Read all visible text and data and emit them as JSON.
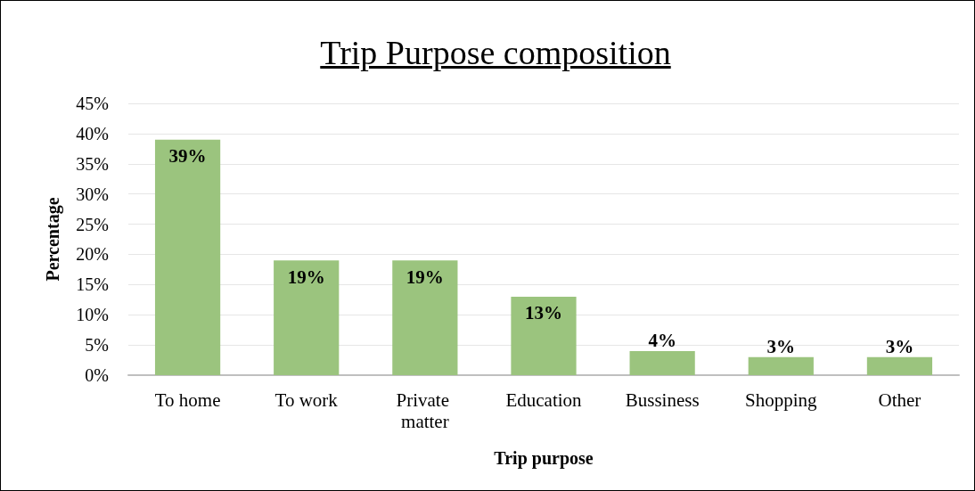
{
  "chart_data": {
    "type": "bar",
    "title": "Trip Purpose composition",
    "xlabel": "Trip purpose",
    "ylabel": "Percentage",
    "categories": [
      "To home",
      "To work",
      "Private matter",
      "Education",
      "Bussiness",
      "Shopping",
      "Other"
    ],
    "values": [
      39,
      19,
      19,
      13,
      4,
      3,
      3
    ],
    "value_labels": [
      "39%",
      "19%",
      "19%",
      "13%",
      "4%",
      "3%",
      "3%"
    ],
    "color": "#9bc47e",
    "ylim": [
      0,
      45
    ],
    "yticks": [
      {
        "value": 0,
        "label": "0%"
      },
      {
        "value": 5,
        "label": "5%"
      },
      {
        "value": 10,
        "label": "10%"
      },
      {
        "value": 15,
        "label": "15%"
      },
      {
        "value": 20,
        "label": "20%"
      },
      {
        "value": 25,
        "label": "25%"
      },
      {
        "value": 30,
        "label": "30%"
      },
      {
        "value": 35,
        "label": "35%"
      },
      {
        "value": 40,
        "label": "40%"
      },
      {
        "value": 45,
        "label": "45%"
      }
    ],
    "grid": "y"
  }
}
